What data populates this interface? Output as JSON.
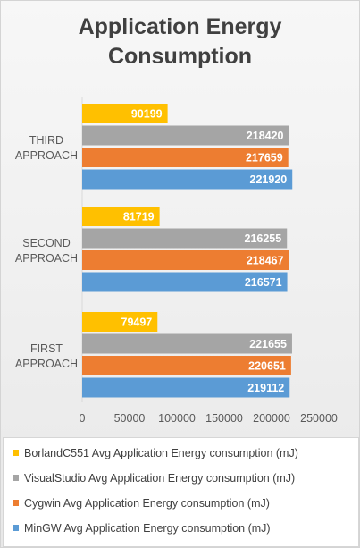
{
  "chart_data": {
    "type": "bar",
    "orientation": "horizontal",
    "title": "Application Energy Consumption",
    "title_lines": [
      "Application Energy",
      "Consumption"
    ],
    "categories": [
      {
        "label_lines": [
          "THIRD",
          "APPROACH"
        ]
      },
      {
        "label_lines": [
          "SECOND",
          "APPROACH"
        ]
      },
      {
        "label_lines": [
          "FIRST",
          "APPROACH"
        ]
      }
    ],
    "series": [
      {
        "name": "BorlandC551 Avg Application  Energy consumption (mJ)",
        "color": "#ffc000",
        "values": [
          90199,
          81719,
          79497
        ]
      },
      {
        "name": "VisualStudio Avg Application  Energy consumption (mJ)",
        "color": "#a5a5a5",
        "values": [
          218420,
          216255,
          221655
        ]
      },
      {
        "name": "Cygwin Avg Application  Energy consumption (mJ)",
        "color": "#ed7d31",
        "values": [
          217659,
          218467,
          220651
        ]
      },
      {
        "name": "MinGW Avg Application  Energy consumption (mJ)",
        "color": "#5b9bd5",
        "values": [
          221920,
          216571,
          219112
        ]
      }
    ],
    "xlim": [
      0,
      250000
    ],
    "x_ticks": [
      "0",
      "50000",
      "100000",
      "150000",
      "200000",
      "250000"
    ],
    "data_labels": true,
    "legend_position": "bottom",
    "grid": false
  }
}
